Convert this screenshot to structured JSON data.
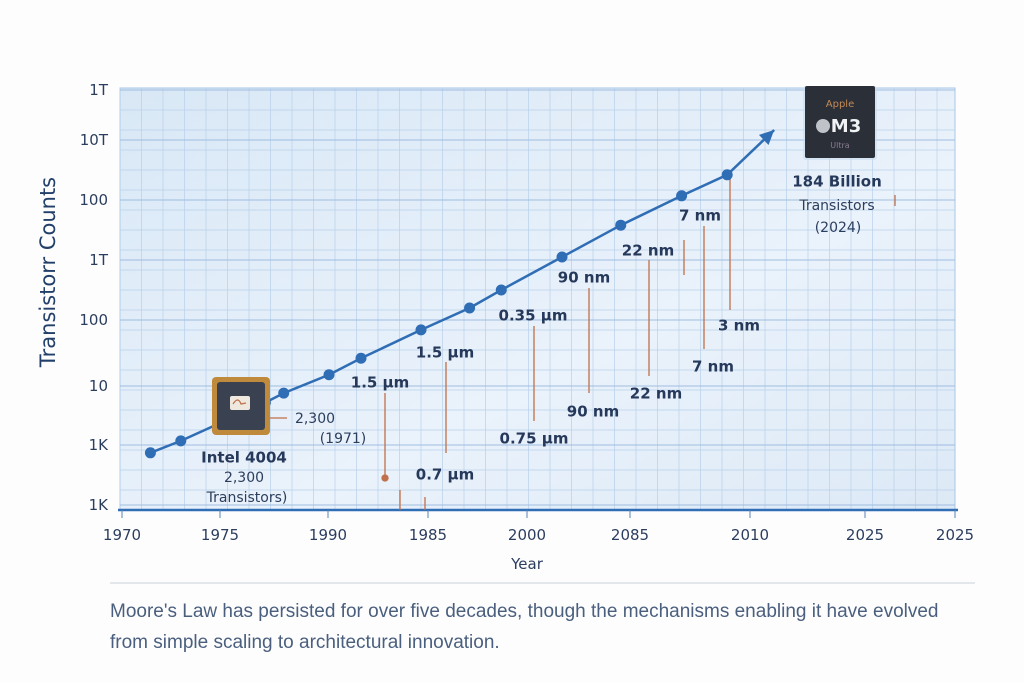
{
  "chart_data": {
    "type": "line",
    "title": "",
    "xlabel": "Year",
    "ylabel": "Transistorr Counts",
    "x_tick_labels": [
      "1970",
      "1975",
      "1990",
      "1985",
      "2000",
      "2085",
      "2010",
      "2025",
      "2025"
    ],
    "y_tick_labels": [
      "1K",
      "1K",
      "10",
      "100",
      "1T",
      "100",
      "10T",
      "1T"
    ],
    "axis_note": "Tick labels are printed out of order; point positions are given in tick-index units (0 = first tick)",
    "grid": true,
    "series": [
      {
        "x": [
          0.29,
          0.6,
          1.42,
          1.59,
          2.01,
          2.33,
          2.93,
          3.42,
          3.74,
          4.34,
          4.91,
          5.43,
          5.81
        ],
        "y": [
          0.87,
          1.07,
          1.72,
          1.88,
          2.17,
          2.42,
          2.85,
          3.2,
          3.5,
          4.05,
          4.58,
          5.07,
          5.42
        ],
        "trend_arrow_end": {
          "x": 6.21,
          "y": 6.2
        },
        "color": "#2f6db5"
      }
    ],
    "annotations": {
      "intel_chip": {
        "name": "Intel 4004",
        "count": "2,300",
        "suffix": "Transistors)",
        "callout_value": "2,300",
        "callout_year": "(1971)"
      },
      "apple_chip": {
        "brand": "Apple",
        "model": "M3",
        "variant": "Ultra",
        "count": "184 Billion",
        "unit": "Transistors",
        "year": "(2024)"
      },
      "nodes_upper": [
        "1.5 µm",
        "1.5 µm",
        "0.35 µm",
        "90 nm",
        "22 nm",
        "7 nm"
      ],
      "nodes_lower": [
        "0.7 µm",
        "0.75 µm",
        "90 nm",
        "22 nm",
        "7 nm",
        "3 nm"
      ]
    },
    "accent_color": "#2f6db5",
    "leader_color": "#c0704a"
  },
  "caption": "Moore's Law has persisted for over five decades, though the mechanisms enabling it have evolved from simple scaling to architectural innovation."
}
